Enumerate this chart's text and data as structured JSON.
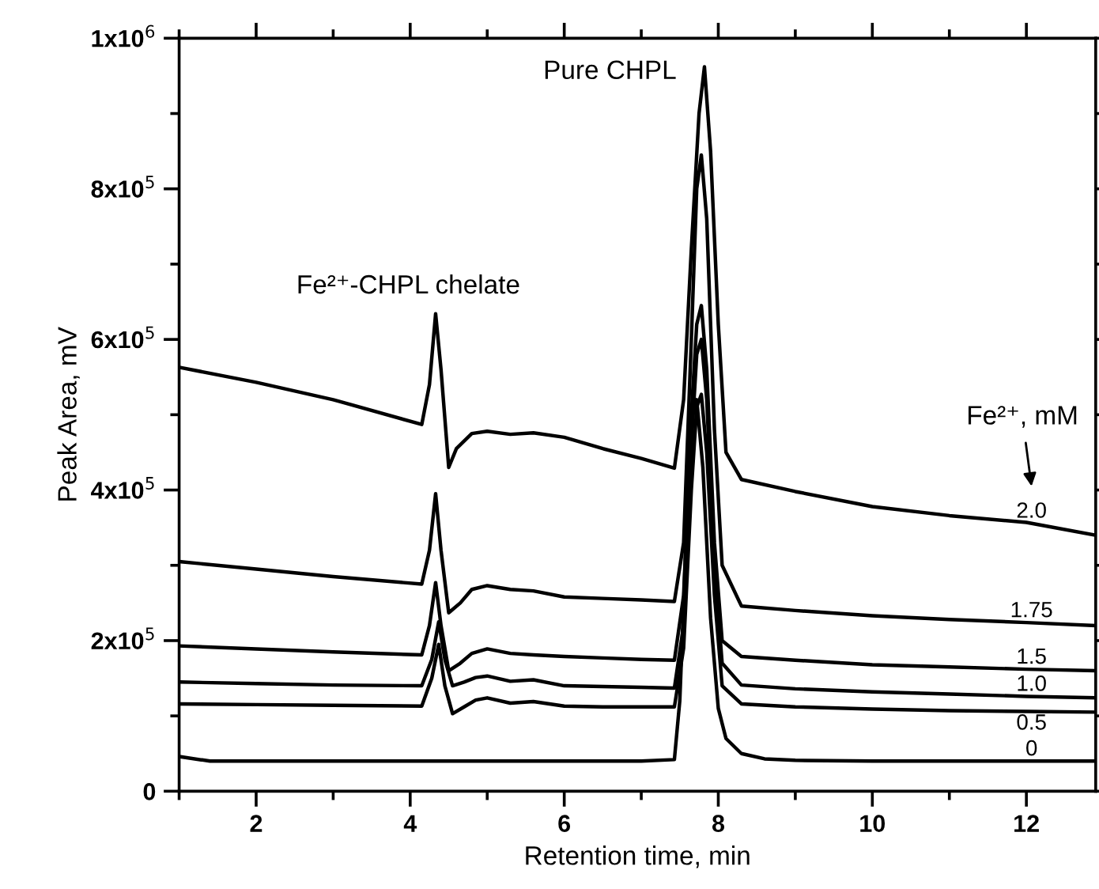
{
  "chart_data": {
    "type": "line",
    "xlabel": "Retention time, min",
    "ylabel": "Peak Area, mV",
    "xlim": [
      1,
      12.9
    ],
    "ylim": [
      0,
      1000000
    ],
    "xticks": [
      {
        "value": 1,
        "label": null
      },
      2,
      {
        "value": 3,
        "label": null
      },
      4,
      {
        "value": 5,
        "label": null
      },
      6,
      {
        "value": 7,
        "label": null
      },
      8,
      {
        "value": 9,
        "label": null
      },
      10,
      {
        "value": 11,
        "label": null
      },
      12
    ],
    "yticks": [
      0,
      {
        "value": 100000,
        "label": null
      },
      {
        "value": 200000,
        "label": "2x10$^{5}$"
      },
      {
        "value": 300000,
        "label": null
      },
      {
        "value": 400000,
        "label": "4x10$^{5}$"
      },
      {
        "value": 500000,
        "label": null
      },
      {
        "value": 600000,
        "label": "6x10$^{5}$"
      },
      {
        "value": 700000,
        "label": null
      },
      {
        "value": 800000,
        "label": "8x10$^{5}$"
      },
      {
        "value": 900000,
        "label": null
      },
      {
        "value": 1000000,
        "label": "1x10$^{6}$"
      }
    ],
    "grid": false,
    "legend": "right",
    "marker": "none",
    "line_style": "solid",
    "annotations": [
      "Pure CHPL",
      "Fe²⁺-CHPL chelate",
      "Fe²⁺, mM"
    ],
    "series": [
      {
        "name": "2.0",
        "color": "#000000",
        "x": [
          1,
          2,
          3,
          4.15,
          4.25,
          4.33,
          4.4,
          4.5,
          4.6,
          4.8,
          5.0,
          5.3,
          5.6,
          6.0,
          6.5,
          7.0,
          7.43,
          7.55,
          7.65,
          7.75,
          7.82,
          7.9,
          8.0,
          8.1,
          8.3,
          9,
          10,
          11,
          12,
          12.9
        ],
        "values": [
          563000,
          543000,
          520000,
          487000,
          540000,
          634000,
          560000,
          430000,
          455000,
          475000,
          478000,
          474000,
          476000,
          470000,
          455000,
          442000,
          429000,
          520000,
          720000,
          900000,
          962000,
          850000,
          620000,
          450000,
          414000,
          398000,
          378000,
          366000,
          357000,
          340000
        ]
      },
      {
        "name": "1.75",
        "color": "#000000",
        "x": [
          1,
          2,
          3,
          4.15,
          4.25,
          4.33,
          4.4,
          4.5,
          4.65,
          4.8,
          5.0,
          5.3,
          5.6,
          6.0,
          6.5,
          7.0,
          7.43,
          7.55,
          7.65,
          7.72,
          7.78,
          7.85,
          7.95,
          8.05,
          8.3,
          9,
          10,
          11,
          12,
          12.9
        ],
        "values": [
          305000,
          295000,
          285000,
          275000,
          320000,
          395000,
          320000,
          237000,
          250000,
          268000,
          273000,
          268000,
          266000,
          258000,
          256000,
          254000,
          252000,
          330000,
          600000,
          800000,
          845000,
          760000,
          480000,
          300000,
          246000,
          240000,
          233000,
          228000,
          224000,
          220000
        ]
      },
      {
        "name": "1.5",
        "color": "#000000",
        "x": [
          1,
          2,
          3,
          4.15,
          4.25,
          4.33,
          4.4,
          4.5,
          4.65,
          4.8,
          5.0,
          5.3,
          5.6,
          6.0,
          6.5,
          7.0,
          7.43,
          7.55,
          7.65,
          7.72,
          7.78,
          7.85,
          7.95,
          8.05,
          8.3,
          9,
          10,
          11,
          12,
          12.9
        ],
        "values": [
          193000,
          189000,
          185000,
          181000,
          220000,
          277000,
          220000,
          160000,
          170000,
          183000,
          189000,
          183000,
          181000,
          179000,
          177000,
          175000,
          174000,
          260000,
          500000,
          620000,
          645000,
          560000,
          330000,
          200000,
          179000,
          174000,
          168000,
          165000,
          162000,
          160000
        ]
      },
      {
        "name": "1.0",
        "color": "#000000",
        "x": [
          1,
          2,
          3,
          4.15,
          4.28,
          4.37,
          4.45,
          4.55,
          4.7,
          4.85,
          5.0,
          5.3,
          5.6,
          6.0,
          6.5,
          7.0,
          7.43,
          7.55,
          7.65,
          7.72,
          7.78,
          7.85,
          7.95,
          8.05,
          8.3,
          9,
          10,
          11,
          12,
          12.9
        ],
        "values": [
          145000,
          143000,
          141000,
          140000,
          175000,
          225000,
          175000,
          140000,
          145000,
          151000,
          153000,
          146000,
          148000,
          140000,
          139000,
          138000,
          137000,
          220000,
          460000,
          580000,
          600000,
          520000,
          300000,
          170000,
          141000,
          136000,
          132000,
          129000,
          126000,
          124000
        ]
      },
      {
        "name": "0.5",
        "color": "#000000",
        "x": [
          1,
          2,
          3,
          4.15,
          4.28,
          4.37,
          4.45,
          4.55,
          4.7,
          4.85,
          5.0,
          5.3,
          5.6,
          6.0,
          6.5,
          7.0,
          7.43,
          7.55,
          7.65,
          7.72,
          7.78,
          7.85,
          7.95,
          8.05,
          8.3,
          9,
          10,
          11,
          12,
          12.9
        ],
        "values": [
          116000,
          115000,
          114000,
          113000,
          150000,
          195000,
          140000,
          103000,
          112000,
          121000,
          124000,
          117000,
          119000,
          113000,
          112000,
          112000,
          112000,
          190000,
          400000,
          510000,
          527000,
          450000,
          260000,
          140000,
          116000,
          112000,
          109000,
          107000,
          106000,
          105000
        ]
      },
      {
        "name": "0",
        "color": "#000000",
        "x": [
          1,
          1.4,
          2,
          3,
          4,
          5,
          6,
          7,
          7.43,
          7.5,
          7.6,
          7.67,
          7.72,
          7.8,
          7.9,
          8.0,
          8.1,
          8.3,
          8.6,
          9,
          10,
          11,
          12,
          12.9
        ],
        "values": [
          46000,
          40000,
          40000,
          40000,
          40000,
          40000,
          40000,
          40000,
          42000,
          120000,
          380000,
          500000,
          520000,
          430000,
          230000,
          110000,
          70000,
          50000,
          43000,
          41000,
          40000,
          40000,
          40000,
          40000
        ]
      }
    ]
  }
}
